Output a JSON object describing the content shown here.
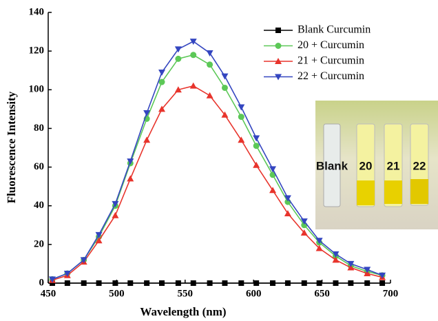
{
  "chart_data": {
    "type": "line",
    "x_label": "Wavelength (nm)",
    "y_label": "Fluorescence Intensity",
    "x": [
      453,
      464,
      476,
      487,
      499,
      510,
      522,
      533,
      545,
      556,
      568,
      579,
      591,
      602,
      614,
      625,
      637,
      648,
      660,
      671,
      683,
      694
    ],
    "series": [
      {
        "name": "Blank Curcumin",
        "color": "#000000",
        "marker": "square",
        "values": [
          0,
          0,
          0,
          0,
          0,
          0,
          0,
          0,
          0,
          0,
          0,
          0,
          0,
          0,
          0,
          0,
          0,
          0,
          0,
          0,
          0,
          0
        ]
      },
      {
        "name": "20 + Curcumin",
        "color": "#5cc857",
        "marker": "circle",
        "values": [
          2,
          5,
          12,
          24,
          40,
          62,
          85,
          104,
          116,
          118,
          113,
          101,
          86,
          71,
          56,
          42,
          30,
          21,
          14,
          9,
          6,
          4
        ]
      },
      {
        "name": "21 + Curcumin",
        "color": "#e8342c",
        "marker": "triangle-up",
        "values": [
          1.5,
          4,
          11,
          22,
          35,
          54,
          74,
          90,
          100,
          102,
          97,
          87,
          74,
          61,
          48,
          36,
          26,
          18,
          12,
          8,
          5,
          3
        ]
      },
      {
        "name": "22 + Curcumin",
        "color": "#3446c0",
        "marker": "triangle-down",
        "values": [
          2,
          5,
          12,
          25,
          41,
          63,
          88,
          109,
          121,
          125,
          119,
          107,
          91,
          75,
          59,
          44,
          32,
          22,
          15,
          10,
          7,
          4
        ]
      }
    ],
    "xlim": [
      450,
      700
    ],
    "xticks": [
      450,
      500,
      550,
      600,
      650,
      700
    ],
    "ylim": [
      0,
      140
    ],
    "yticks": [
      0,
      20,
      40,
      60,
      80,
      100,
      120,
      140
    ],
    "legend": "upper right",
    "annotations": [
      "Blank",
      "20",
      "21",
      "22"
    ]
  }
}
